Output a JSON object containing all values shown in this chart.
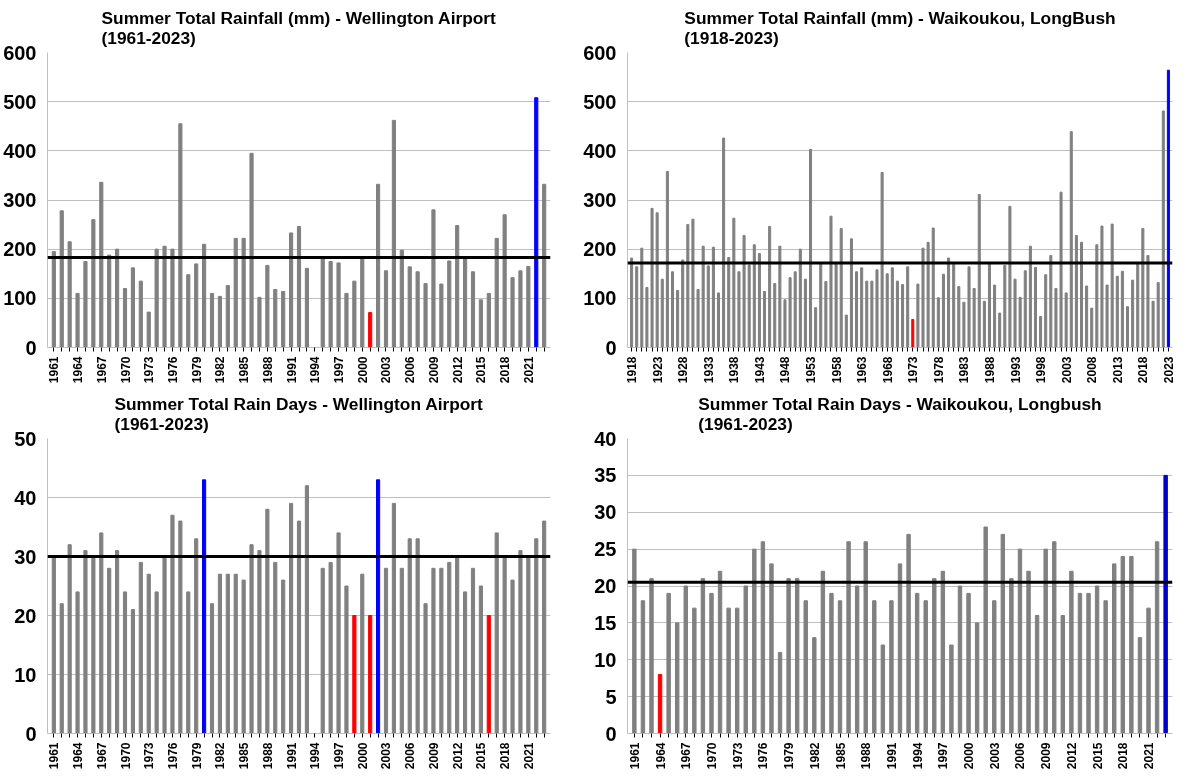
{
  "chart_data": [
    {
      "type": "bar",
      "title": "Summer Total Rainfall (mm) - Wellington Airport (1961-2023)",
      "categories": [
        "1961",
        null,
        null,
        "1964",
        null,
        null,
        "1967",
        null,
        null,
        "1970",
        null,
        null,
        "1973",
        null,
        null,
        "1976",
        null,
        null,
        "1979",
        null,
        null,
        "1982",
        null,
        null,
        "1985",
        null,
        null,
        "1988",
        null,
        null,
        "1991",
        null,
        null,
        "1994",
        null,
        null,
        "1997",
        null,
        null,
        "2000",
        null,
        null,
        "2003",
        null,
        null,
        "2006",
        null,
        null,
        "2009",
        null,
        null,
        "2012",
        null,
        null,
        "2015",
        null,
        null,
        "2018",
        null,
        null,
        "2021",
        null,
        null
      ],
      "values": [
        195,
        278,
        215,
        110,
        175,
        260,
        336,
        188,
        200,
        120,
        162,
        135,
        72,
        200,
        206,
        200,
        455,
        148,
        170,
        210,
        110,
        104,
        126,
        222,
        222,
        395,
        102,
        167,
        118,
        114,
        233,
        246,
        161,
        null,
        185,
        175,
        172,
        110,
        135,
        183,
        71,
        332,
        156,
        462,
        198,
        164,
        154,
        130,
        280,
        129,
        176,
        248,
        180,
        154,
        97,
        110,
        222,
        270,
        142,
        156,
        165,
        508,
        332
      ],
      "colors": [
        "#808080",
        "#808080",
        "#808080",
        "#808080",
        "#808080",
        "#808080",
        "#808080",
        "#808080",
        "#808080",
        "#808080",
        "#808080",
        "#808080",
        "#808080",
        "#808080",
        "#808080",
        "#808080",
        "#808080",
        "#808080",
        "#808080",
        "#808080",
        "#808080",
        "#808080",
        "#808080",
        "#808080",
        "#808080",
        "#808080",
        "#808080",
        "#808080",
        "#808080",
        "#808080",
        "#808080",
        "#808080",
        "#808080",
        "#808080",
        "#808080",
        "#808080",
        "#808080",
        "#808080",
        "#808080",
        "#808080",
        "#ff0000",
        "#808080",
        "#808080",
        "#808080",
        "#808080",
        "#808080",
        "#808080",
        "#808080",
        "#808080",
        "#808080",
        "#808080",
        "#808080",
        "#808080",
        "#808080",
        "#808080",
        "#808080",
        "#808080",
        "#808080",
        "#808080",
        "#808080",
        "#808080",
        "#0000ff",
        "#808080"
      ],
      "ylim": [
        0,
        600
      ],
      "yticks": [
        0,
        100,
        200,
        300,
        400,
        500,
        600
      ],
      "grid": "y",
      "ref_lines": [
        {
          "axis": "y",
          "value": 183,
          "color": "#000000"
        }
      ]
    },
    {
      "type": "bar",
      "title": "Summer Total Rainfall (mm) - Waikoukou, LongBush (1918-2023)",
      "categories": [
        "1918",
        null,
        null,
        null,
        null,
        "1923",
        null,
        null,
        null,
        null,
        "1928",
        null,
        null,
        null,
        null,
        "1933",
        null,
        null,
        null,
        null,
        "1938",
        null,
        null,
        null,
        null,
        "1943",
        null,
        null,
        null,
        null,
        "1948",
        null,
        null,
        null,
        null,
        "1953",
        null,
        null,
        null,
        null,
        "1958",
        null,
        null,
        null,
        null,
        "1963",
        null,
        null,
        null,
        null,
        "1968",
        null,
        null,
        null,
        null,
        "1973",
        null,
        null,
        null,
        null,
        "1978",
        null,
        null,
        null,
        null,
        "1983",
        null,
        null,
        null,
        null,
        "1988",
        null,
        null,
        null,
        null,
        "1993",
        null,
        null,
        null,
        null,
        "1998",
        null,
        null,
        null,
        null,
        "2003",
        null,
        null,
        null,
        null,
        "2008",
        null,
        null,
        null,
        null,
        "2013",
        null,
        null,
        null,
        null,
        "2018",
        null,
        null,
        null,
        null,
        "2023"
      ],
      "values": [
        182,
        164,
        202,
        122,
        283,
        274,
        139,
        358,
        154,
        116,
        178,
        250,
        261,
        118,
        206,
        166,
        204,
        111,
        426,
        183,
        263,
        154,
        228,
        168,
        209,
        191,
        114,
        246,
        130,
        206,
        97,
        142,
        154,
        200,
        139,
        403,
        81,
        172,
        134,
        267,
        172,
        242,
        66,
        221,
        154,
        162,
        135,
        135,
        158,
        356,
        150,
        162,
        135,
        128,
        164,
        57,
        129,
        202,
        214,
        243,
        101,
        149,
        182,
        169,
        124,
        92,
        164,
        120,
        311,
        94,
        170,
        127,
        70,
        167,
        287,
        139,
        102,
        156,
        206,
        163,
        63,
        148,
        187,
        120,
        316,
        111,
        439,
        228,
        214,
        125,
        80,
        209,
        247,
        127,
        251,
        145,
        155,
        83,
        137,
        171,
        242,
        187,
        94,
        132,
        481,
        564
      ],
      "colors": [
        "#808080",
        "#808080",
        "#808080",
        "#808080",
        "#808080",
        "#808080",
        "#808080",
        "#808080",
        "#808080",
        "#808080",
        "#808080",
        "#808080",
        "#808080",
        "#808080",
        "#808080",
        "#808080",
        "#808080",
        "#808080",
        "#808080",
        "#808080",
        "#808080",
        "#808080",
        "#808080",
        "#808080",
        "#808080",
        "#808080",
        "#808080",
        "#808080",
        "#808080",
        "#808080",
        "#808080",
        "#808080",
        "#808080",
        "#808080",
        "#808080",
        "#808080",
        "#808080",
        "#808080",
        "#808080",
        "#808080",
        "#808080",
        "#808080",
        "#808080",
        "#808080",
        "#808080",
        "#808080",
        "#808080",
        "#808080",
        "#808080",
        "#808080",
        "#808080",
        "#808080",
        "#808080",
        "#808080",
        "#808080",
        "#ff0000",
        "#808080",
        "#808080",
        "#808080",
        "#808080",
        "#808080",
        "#808080",
        "#808080",
        "#808080",
        "#808080",
        "#808080",
        "#808080",
        "#808080",
        "#808080",
        "#808080",
        "#808080",
        "#808080",
        "#808080",
        "#808080",
        "#808080",
        "#808080",
        "#808080",
        "#808080",
        "#808080",
        "#808080",
        "#808080",
        "#808080",
        "#808080",
        "#808080",
        "#808080",
        "#808080",
        "#808080",
        "#808080",
        "#808080",
        "#808080",
        "#808080",
        "#808080",
        "#808080",
        "#808080",
        "#808080",
        "#808080",
        "#808080",
        "#808080",
        "#808080",
        "#808080",
        "#808080",
        "#808080",
        "#808080",
        "#808080",
        "#808080",
        "#0000ff"
      ],
      "ylim": [
        0,
        600
      ],
      "yticks": [
        0,
        100,
        200,
        300,
        400,
        500,
        600
      ],
      "grid": "y",
      "ref_lines": [
        {
          "axis": "y",
          "value": 172,
          "color": "#000000"
        }
      ]
    },
    {
      "type": "bar",
      "title": "Summer Total Rain Days - Wellington Airport (1961-2023)",
      "categories": [
        "1961",
        null,
        null,
        "1964",
        null,
        null,
        "1967",
        null,
        null,
        "1970",
        null,
        null,
        "1973",
        null,
        null,
        "1976",
        null,
        null,
        "1979",
        null,
        null,
        "1982",
        null,
        null,
        "1985",
        null,
        null,
        "1988",
        null,
        null,
        "1991",
        null,
        null,
        "1994",
        null,
        null,
        "1997",
        null,
        null,
        "2000",
        null,
        null,
        "2003",
        null,
        null,
        "2006",
        null,
        null,
        "2009",
        null,
        null,
        "2012",
        null,
        null,
        "2015",
        null,
        null,
        "2018",
        null,
        null,
        "2021",
        null,
        null
      ],
      "values": [
        30,
        22,
        32,
        24,
        31,
        30,
        34,
        28,
        31,
        24,
        21,
        29,
        27,
        24,
        30,
        37,
        36,
        24,
        33,
        43,
        22,
        27,
        27,
        27,
        26,
        32,
        31,
        38,
        29,
        26,
        39,
        36,
        42,
        null,
        28,
        29,
        34,
        25,
        20,
        27,
        20,
        43,
        28,
        39,
        28,
        33,
        33,
        22,
        28,
        28,
        29,
        30,
        24,
        28,
        25,
        20,
        34,
        30,
        26,
        31,
        30,
        33,
        36
      ],
      "colors": [
        "#808080",
        "#808080",
        "#808080",
        "#808080",
        "#808080",
        "#808080",
        "#808080",
        "#808080",
        "#808080",
        "#808080",
        "#808080",
        "#808080",
        "#808080",
        "#808080",
        "#808080",
        "#808080",
        "#808080",
        "#808080",
        "#808080",
        "#0000ff",
        "#808080",
        "#808080",
        "#808080",
        "#808080",
        "#808080",
        "#808080",
        "#808080",
        "#808080",
        "#808080",
        "#808080",
        "#808080",
        "#808080",
        "#808080",
        "#808080",
        "#808080",
        "#808080",
        "#808080",
        "#808080",
        "#ff0000",
        "#808080",
        "#ff0000",
        "#0000ff",
        "#808080",
        "#808080",
        "#808080",
        "#808080",
        "#808080",
        "#808080",
        "#808080",
        "#808080",
        "#808080",
        "#808080",
        "#808080",
        "#808080",
        "#808080",
        "#ff0000",
        "#808080",
        "#808080",
        "#808080",
        "#808080",
        "#808080",
        "#808080",
        "#808080"
      ],
      "ylim": [
        0,
        50
      ],
      "yticks": [
        0,
        10,
        20,
        30,
        40,
        50
      ],
      "grid": "y",
      "ref_lines": [
        {
          "axis": "y",
          "value": 30,
          "color": "#000000"
        }
      ]
    },
    {
      "type": "bar",
      "title": "Summer Total Rain Days - Waikoukou, Longbush (1961-2023)",
      "categories": [
        "1961",
        null,
        null,
        "1964",
        null,
        null,
        "1967",
        null,
        null,
        "1970",
        null,
        null,
        "1973",
        null,
        null,
        "1976",
        null,
        null,
        "1979",
        null,
        null,
        "1982",
        null,
        null,
        "1985",
        null,
        null,
        "1988",
        null,
        null,
        "1991",
        null,
        null,
        "1994",
        null,
        null,
        "1997",
        null,
        null,
        "2000",
        null,
        null,
        "2003",
        null,
        null,
        "2006",
        null,
        null,
        "2009",
        null,
        null,
        "2012",
        null,
        null,
        "2015",
        null,
        null,
        "2018",
        null,
        null,
        "2021",
        null,
        null
      ],
      "values": [
        25,
        18,
        21,
        8,
        19,
        15,
        20,
        17,
        21,
        19,
        22,
        17,
        17,
        20,
        25,
        26,
        23,
        11,
        21,
        21,
        18,
        13,
        22,
        19,
        18,
        26,
        20,
        26,
        18,
        12,
        18,
        23,
        27,
        19,
        18,
        21,
        22,
        12,
        20,
        19,
        15,
        28,
        18,
        27,
        21,
        25,
        22,
        16,
        25,
        26,
        16,
        22,
        19,
        19,
        20,
        18,
        23,
        24,
        24,
        13,
        17,
        26,
        35
      ],
      "colors": [
        "#808080",
        "#808080",
        "#808080",
        "#ff0000",
        "#808080",
        "#808080",
        "#808080",
        "#808080",
        "#808080",
        "#808080",
        "#808080",
        "#808080",
        "#808080",
        "#808080",
        "#808080",
        "#808080",
        "#808080",
        "#808080",
        "#808080",
        "#808080",
        "#808080",
        "#808080",
        "#808080",
        "#808080",
        "#808080",
        "#808080",
        "#808080",
        "#808080",
        "#808080",
        "#808080",
        "#808080",
        "#808080",
        "#808080",
        "#808080",
        "#808080",
        "#808080",
        "#808080",
        "#808080",
        "#808080",
        "#808080",
        "#808080",
        "#808080",
        "#808080",
        "#808080",
        "#808080",
        "#808080",
        "#808080",
        "#808080",
        "#808080",
        "#808080",
        "#808080",
        "#808080",
        "#808080",
        "#808080",
        "#808080",
        "#808080",
        "#808080",
        "#808080",
        "#808080",
        "#808080",
        "#808080",
        "#808080",
        "#0000cc"
      ],
      "ylim": [
        0,
        40
      ],
      "yticks": [
        0,
        5,
        10,
        15,
        20,
        25,
        30,
        35,
        40
      ],
      "grid": "y",
      "ref_lines": [
        {
          "axis": "y",
          "value": 20.5,
          "color": "#000000"
        }
      ]
    }
  ]
}
